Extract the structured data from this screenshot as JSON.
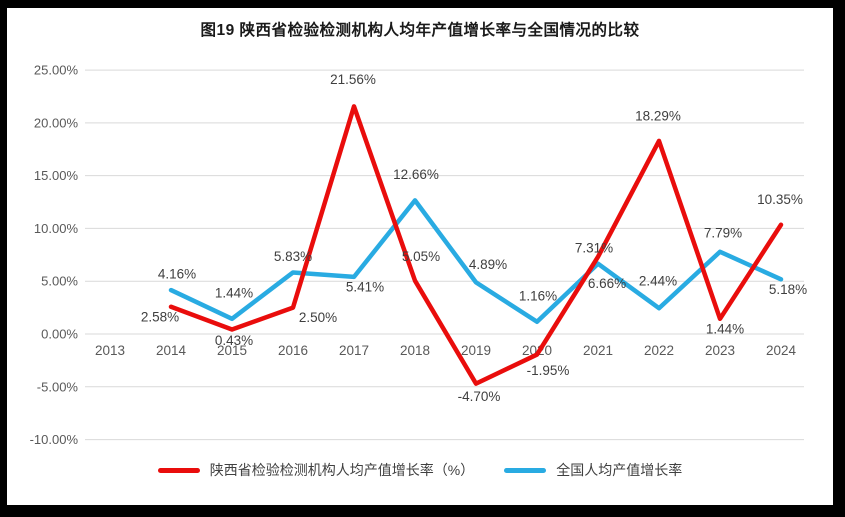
{
  "frame": {
    "border_color": "#000000",
    "card_background": "#ffffff",
    "gridline_color": "#d9d9d9",
    "axis_text_color": "#595959",
    "data_label_color": "#3f3f3f"
  },
  "chart_data": {
    "type": "line",
    "title": "图19 陕西省检验检测机构人均年产值增长率与全国情况的比较",
    "categories": [
      "2013",
      "2014",
      "2015",
      "2016",
      "2017",
      "2018",
      "2019",
      "2020",
      "2021",
      "2022",
      "2023",
      "2024"
    ],
    "ylim": [
      -10,
      25
    ],
    "ytick_labels": [
      "25.00%",
      "20.00%",
      "15.00%",
      "10.00%",
      "5.00%",
      "0.00%",
      "-5.00%",
      "-10.00%"
    ],
    "ytick_values": [
      25,
      20,
      15,
      10,
      5,
      0,
      -5,
      -10
    ],
    "grid": true,
    "legend_position": "bottom",
    "series": [
      {
        "name": "陕西省检验检测机构人均产值增长率（%）",
        "color": "#e90d0c",
        "points": [
          {
            "x": "2014",
            "y": 2.58,
            "label": "2.58%",
            "dx": -11,
            "dy": 10
          },
          {
            "x": "2015",
            "y": 0.43,
            "label": "0.43%",
            "dx": 2,
            "dy": 11
          },
          {
            "x": "2016",
            "y": 2.5,
            "label": "2.50%",
            "dx": 25,
            "dy": 10
          },
          {
            "x": "2017",
            "y": 21.56,
            "label": "21.56%",
            "dx": -1,
            "dy": -27
          },
          {
            "x": "2018",
            "y": 5.05,
            "label": "5.05%",
            "dx": 6,
            "dy": -24
          },
          {
            "x": "2019",
            "y": -4.7,
            "label": "-4.70%",
            "dx": 3,
            "dy": 13
          },
          {
            "x": "2020",
            "y": -1.95,
            "label": "-1.95%",
            "dx": 11,
            "dy": 16
          },
          {
            "x": "2021",
            "y": 7.31,
            "label": "7.31%",
            "dx": -4,
            "dy": -9
          },
          {
            "x": "2022",
            "y": 18.29,
            "label": "18.29%",
            "dx": -1,
            "dy": -25
          },
          {
            "x": "2023",
            "y": 1.44,
            "label": "1.44%",
            "dx": 5,
            "dy": 10
          },
          {
            "x": "2024",
            "y": 10.35,
            "label": "10.35%",
            "dx": -1,
            "dy": -25
          }
        ]
      },
      {
        "name": "全国人均产值增长率",
        "color": "#29abe2",
        "points": [
          {
            "x": "2014",
            "y": 4.16,
            "label": "4.16%",
            "dx": 6,
            "dy": -16
          },
          {
            "x": "2015",
            "y": 1.44,
            "label": "1.44%",
            "dx": 2,
            "dy": -26
          },
          {
            "x": "2016",
            "y": 5.83,
            "label": "5.83%",
            "dx": 0,
            "dy": -16
          },
          {
            "x": "2017",
            "y": 5.41,
            "label": "5.41%",
            "dx": 11,
            "dy": 10
          },
          {
            "x": "2018",
            "y": 12.66,
            "label": "12.66%",
            "dx": 1,
            "dy": -26
          },
          {
            "x": "2019",
            "y": 4.89,
            "label": "4.89%",
            "dx": 12,
            "dy": -18
          },
          {
            "x": "2020",
            "y": 1.16,
            "label": "1.16%",
            "dx": 1,
            "dy": -26
          },
          {
            "x": "2021",
            "y": 6.66,
            "label": "6.66%",
            "dx": 9,
            "dy": 20
          },
          {
            "x": "2022",
            "y": 2.44,
            "label": "2.44%",
            "dx": -1,
            "dy": -27
          },
          {
            "x": "2023",
            "y": 7.79,
            "label": "7.79%",
            "dx": 3,
            "dy": -19
          },
          {
            "x": "2024",
            "y": 5.18,
            "label": "5.18%",
            "dx": 7,
            "dy": 10
          }
        ]
      }
    ]
  }
}
